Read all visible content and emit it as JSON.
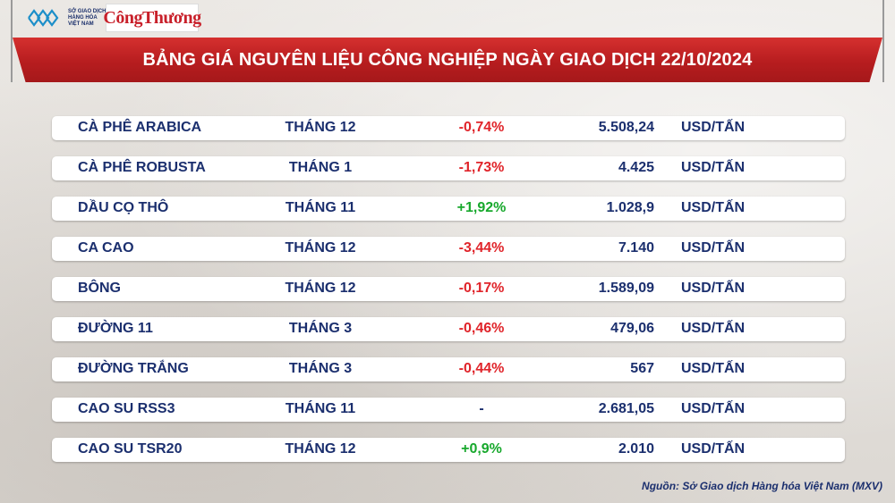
{
  "header": {
    "mxv_logo_lines": [
      "SỞ GIAO DỊCH",
      "HÀNG HÓA",
      "VIỆT NAM"
    ],
    "publisher_logo": "CôngThương"
  },
  "title": "BẢNG GIÁ NGUYÊN LIỆU CÔNG NGHIỆP NGÀY GIAO DỊCH 22/10/2024",
  "rows": [
    {
      "name": "CÀ PHÊ ARABICA",
      "month": "THÁNG 12",
      "change": "-0,74%",
      "trend": "neg",
      "price": "5.508,24",
      "unit": "USD/TẤN"
    },
    {
      "name": "CÀ PHÊ ROBUSTA",
      "month": "THÁNG 1",
      "change": "-1,73%",
      "trend": "neg",
      "price": "4.425",
      "unit": "USD/TẤN"
    },
    {
      "name": "DẦU CỌ THÔ",
      "month": "THÁNG 11",
      "change": "+1,92%",
      "trend": "pos",
      "price": "1.028,9",
      "unit": "USD/TẤN"
    },
    {
      "name": "CA CAO",
      "month": "THÁNG 12",
      "change": "-3,44%",
      "trend": "neg",
      "price": "7.140",
      "unit": "USD/TẤN"
    },
    {
      "name": "BÔNG",
      "month": "THÁNG 12",
      "change": "-0,17%",
      "trend": "neg",
      "price": "1.589,09",
      "unit": "USD/TẤN"
    },
    {
      "name": "ĐƯỜNG 11",
      "month": "THÁNG 3",
      "change": "-0,46%",
      "trend": "neg",
      "price": "479,06",
      "unit": "USD/TẤN"
    },
    {
      "name": "ĐƯỜNG TRẮNG",
      "month": "THÁNG 3",
      "change": "-0,44%",
      "trend": "neg",
      "price": "567",
      "unit": "USD/TẤN"
    },
    {
      "name": "CAO SU RSS3",
      "month": "THÁNG 11",
      "change": "-",
      "trend": "flat",
      "price": "2.681,05",
      "unit": "USD/TẤN"
    },
    {
      "name": "CAO SU TSR20",
      "month": "THÁNG 12",
      "change": "+0,9%",
      "trend": "pos",
      "price": "2.010",
      "unit": "USD/TẤN"
    }
  ],
  "source": "Nguồn: Sở Giao dịch Hàng hóa Việt Nam (MXV)",
  "colors": {
    "negative": "#e0242a",
    "positive": "#17a82c",
    "text": "#1b2f6e",
    "title_bar": "#b71d1f"
  }
}
